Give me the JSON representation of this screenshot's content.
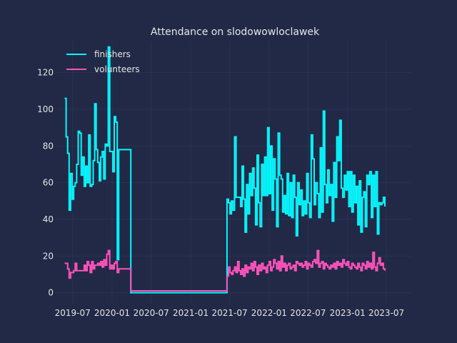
{
  "chart_data": {
    "type": "line",
    "title": "Attendance on slodowowloclawek",
    "xlabel": "",
    "ylabel": "",
    "xlim": [
      "2019-04-20",
      "2023-10-25"
    ],
    "ylim": [
      -6,
      137
    ],
    "grid": true,
    "legend_position": "top-left",
    "background": "#212946",
    "grid_color": "#2A3459",
    "x_ticks": [
      {
        "date": "2019-07-01",
        "label": "2019-07"
      },
      {
        "date": "2020-01-01",
        "label": "2020-01"
      },
      {
        "date": "2020-07-01",
        "label": "2020-07"
      },
      {
        "date": "2021-01-01",
        "label": "2021-01"
      },
      {
        "date": "2021-07-01",
        "label": "2021-07"
      },
      {
        "date": "2022-01-01",
        "label": "2022-01"
      },
      {
        "date": "2022-07-01",
        "label": "2022-07"
      },
      {
        "date": "2023-01-01",
        "label": "2023-01"
      },
      {
        "date": "2023-07-01",
        "label": "2023-07"
      }
    ],
    "y_ticks": [
      0,
      20,
      40,
      60,
      80,
      100,
      120
    ],
    "series": [
      {
        "name": "finishers",
        "color": "#08F7FE",
        "segments": [
          {
            "start": "2019-05-25",
            "values": [
              106,
              85,
              76,
              45,
              65,
              51,
              58,
              60,
              70,
              88,
              87,
              64,
              74,
              58,
              69,
              60,
              86,
              58,
              59,
              72,
              103,
              78,
              71,
              61,
              74,
              77,
              62,
              81,
              80,
              134,
              77,
              77,
              66,
              96,
              93,
              18,
              78
            ]
          },
          {
            "start": "2020-03-28",
            "values": [
              0,
              0,
              0,
              0,
              0,
              0,
              0,
              0,
              0,
              0,
              0,
              0,
              0,
              0,
              0,
              0,
              0,
              0,
              0,
              0,
              0,
              0,
              0,
              0,
              0,
              0,
              0,
              0,
              0,
              0,
              0,
              0,
              0,
              0,
              0,
              0,
              0,
              0,
              0,
              0,
              0,
              0,
              0,
              0,
              0,
              0,
              0,
              0,
              0,
              0,
              0,
              0,
              0,
              0,
              0,
              0,
              0,
              0,
              0,
              0,
              0,
              0,
              0,
              0
            ]
          },
          {
            "start": "2021-06-19",
            "values": [
              51,
              49,
              43,
              50,
              45,
              85,
              52,
              52,
              52,
              47,
              69,
              51,
              33,
              59,
              43,
              65,
              53,
              68,
              57,
              37,
              75,
              49,
              36,
              70,
              53,
              74,
              53,
              90,
              54,
              80,
              45,
              73,
              62,
              36,
              87,
              64,
              62,
              44,
              53,
              43,
              65,
              42,
              60,
              41,
              64,
              52,
              31,
              60,
              48,
              56,
              42,
              50,
              43,
              65,
              49,
              41,
              86,
              73,
              48,
              60,
              54,
              41,
              79,
              44,
              99,
              59,
              49,
              67,
              53,
              59,
              39,
              71,
              52,
              85,
              72,
              94,
              57,
              52,
              64,
              56,
              66,
              47,
              66,
              44,
              64,
              49,
              58,
              37,
              61,
              33,
              52,
              55,
              36,
              64,
              59,
              66,
              41,
              64,
              47,
              66,
              32,
              49,
              48,
              49,
              52,
              47
            ]
          }
        ]
      },
      {
        "name": "volunteers",
        "color": "#FE53BB",
        "segments": [
          {
            "start": "2019-05-25",
            "values": [
              16,
              16,
              13,
              8,
              11,
              11,
              12,
              16,
              12,
              12,
              12,
              12,
              12,
              15,
              12,
              17,
              15,
              11,
              17,
              13,
              15,
              15,
              16,
              15,
              17,
              14,
              18,
              15,
              21,
              23,
              13,
              15,
              13,
              16,
              17,
              11,
              13
            ]
          },
          {
            "start": "2020-03-28",
            "values": [
              1,
              1,
              1,
              1,
              1,
              1,
              1,
              1,
              1,
              1,
              1,
              1,
              1,
              1,
              1,
              1,
              1,
              1,
              1,
              1,
              1,
              1,
              1,
              1,
              1,
              1,
              1,
              1,
              1,
              1,
              1,
              1,
              1,
              1,
              1,
              1,
              1,
              1,
              1,
              1,
              1,
              1,
              1,
              1,
              1,
              1,
              1,
              1,
              1,
              1,
              1,
              1,
              1,
              1,
              1,
              1,
              1,
              1,
              1,
              1,
              1,
              1,
              1,
              1
            ]
          },
          {
            "start": "2021-06-19",
            "values": [
              9,
              14,
              11,
              10,
              12,
              14,
              11,
              17,
              12,
              10,
              13,
              9,
              15,
              11,
              14,
              13,
              16,
              12,
              17,
              14,
              10,
              15,
              12,
              16,
              13,
              14,
              11,
              15,
              17,
              12,
              14,
              18,
              16,
              13,
              17,
              12,
              20,
              14,
              16,
              12,
              15,
              16,
              13,
              14,
              15,
              12,
              17,
              16,
              15,
              16,
              14,
              15,
              17,
              13,
              16,
              15,
              14,
              17,
              18,
              16,
              23,
              14,
              16,
              17,
              13,
              16,
              15,
              14,
              13,
              15,
              14,
              16,
              13,
              17,
              15,
              16,
              14,
              18,
              16,
              15,
              17,
              14,
              13,
              16,
              15,
              14,
              13,
              16,
              14,
              12,
              16,
              15,
              13,
              17,
              14,
              16,
              13,
              22,
              14,
              12,
              16,
              19,
              15,
              16,
              13,
              12
            ]
          }
        ]
      }
    ]
  }
}
